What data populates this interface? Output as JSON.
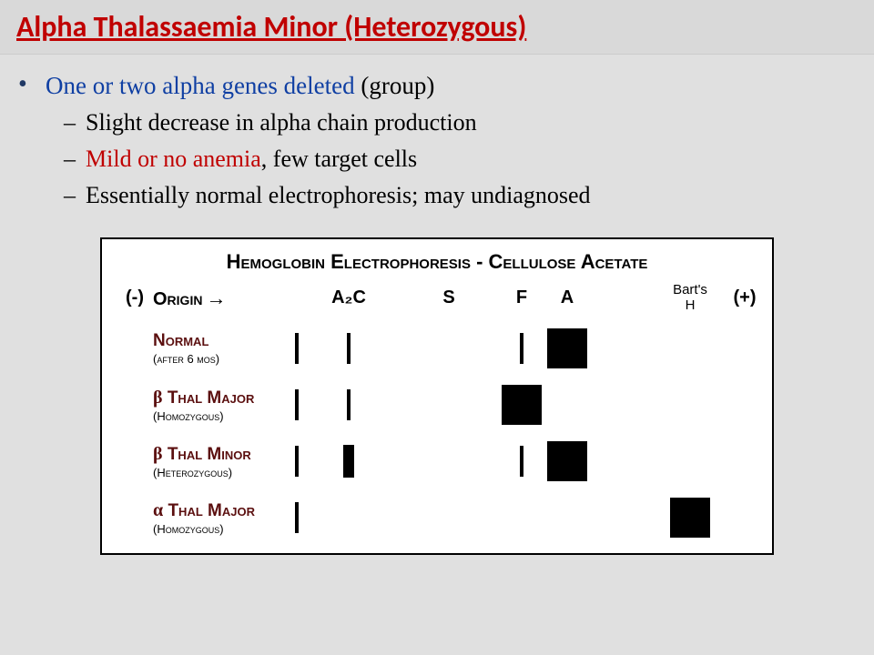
{
  "slide": {
    "title": "Alpha Thalassaemia Minor (Heterozygous)",
    "title_color": "#c00000",
    "bg_color": "#e0e0e0",
    "bullets": {
      "b1_blue": "One or two alpha genes deleted",
      "b1_black": " (group)",
      "b1a": "Slight decrease in alpha chain production",
      "b1b_red": "Mild or no anemia",
      "b1b_black": ", few target cells",
      "b1c": "Essentially normal electrophoresis; may undiagnosed"
    }
  },
  "figure": {
    "title": "Hemoglobin Electrophoresis - Cellulose Acetate",
    "bg": "#ffffff",
    "border": "#000000",
    "header": {
      "minus": "(-)",
      "origin": "Origin",
      "a2c": "A₂C",
      "s": "S",
      "f": "F",
      "a": "A",
      "barts_line1": "Bart's",
      "barts_line2": "H",
      "plus": "(+)"
    },
    "rows": [
      {
        "label": "Normal",
        "sublabel": "(after 6 mos)",
        "marks": {
          "origin": "tick",
          "a2c": "tick",
          "s": "",
          "f": "tick",
          "a": "square",
          "barts": ""
        }
      },
      {
        "label_html": "<span class='greek'>β</span> Thal Major",
        "sublabel": "(Homozygous)",
        "marks": {
          "origin": "tick",
          "a2c": "tick",
          "s": "",
          "f": "square",
          "a": "",
          "barts": ""
        }
      },
      {
        "label_html": "<span class='greek'>β</span> Thal Minor",
        "sublabel": "(Heterozygous)",
        "marks": {
          "origin": "tick",
          "a2c": "tick-thick",
          "s": "",
          "f": "tick",
          "a": "square",
          "barts": ""
        }
      },
      {
        "label_html": "<span class='greek'>α</span> Thal Major",
        "sublabel": "(Homozygous)",
        "marks": {
          "origin": "tick",
          "a2c": "",
          "s": "",
          "f": "",
          "a": "",
          "barts": "square"
        }
      }
    ]
  }
}
